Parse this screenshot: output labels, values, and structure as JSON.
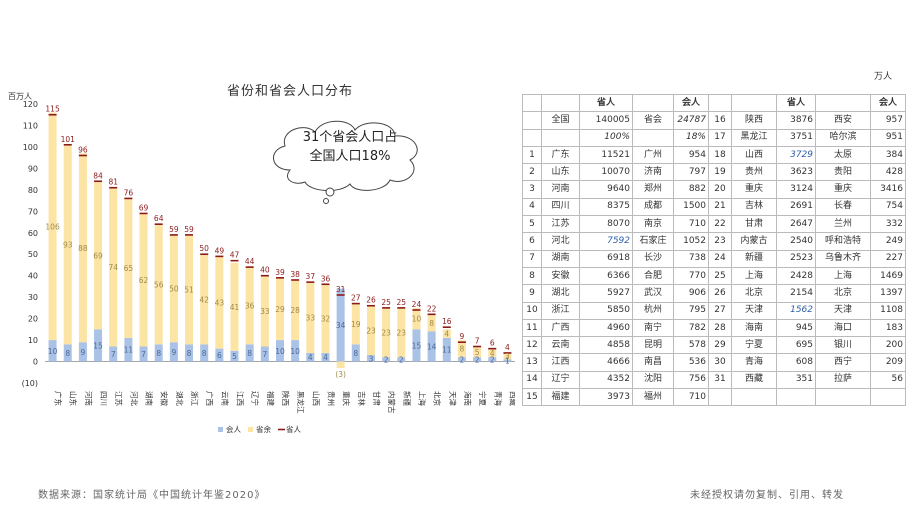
{
  "title": "省份和省会人口分布",
  "y_unit": "百万人",
  "cloud_line1": "31个省会人口占",
  "cloud_line2": "全国人口18%",
  "table_unit": "万人",
  "footer_source": "数据来源：国家统计局《中国统计年鉴2020》",
  "footer_note": "未经授权请勿复制、引用、转发",
  "colors": {
    "capital": "#a9c2e6",
    "rest": "#fce4a4",
    "province": "#8b1a1a"
  },
  "chart_data": {
    "type": "bar",
    "categories": [
      "广东",
      "山东",
      "河南",
      "四川",
      "江苏",
      "河北",
      "湖南",
      "安徽",
      "湖北",
      "浙江",
      "广西",
      "云南",
      "江西",
      "辽宁",
      "福建",
      "陕西",
      "黑龙江",
      "山西",
      "贵州",
      "重庆",
      "吉林",
      "甘肃",
      "内蒙古",
      "新疆",
      "上海",
      "北京",
      "天津",
      "海南",
      "宁夏",
      "青海",
      "西藏"
    ],
    "series": [
      {
        "name": "会人",
        "values": [
          10,
          8,
          9,
          15,
          7,
          11,
          7,
          8,
          9,
          8,
          8,
          6,
          5,
          8,
          7,
          10,
          10,
          4,
          4,
          34,
          8,
          3,
          2,
          2,
          15,
          14,
          11,
          2,
          2,
          2,
          1
        ]
      },
      {
        "name": "省余",
        "values": [
          106,
          93,
          88,
          69,
          74,
          65,
          62,
          56,
          50,
          51,
          42,
          43,
          41,
          36,
          33,
          29,
          28,
          33,
          32,
          -3,
          19,
          23,
          23,
          23,
          10,
          8,
          4,
          8,
          5,
          4,
          3
        ]
      },
      {
        "name": "省人",
        "values": [
          115,
          101,
          96,
          84,
          81,
          76,
          69,
          64,
          59,
          59,
          50,
          49,
          47,
          44,
          40,
          39,
          38,
          37,
          36,
          31,
          27,
          26,
          25,
          25,
          24,
          22,
          16,
          9,
          7,
          6,
          4
        ]
      }
    ],
    "ylim": [
      -10,
      120
    ],
    "yticks": [
      -10,
      0,
      10,
      20,
      30,
      40,
      50,
      60,
      70,
      80,
      90,
      100,
      110,
      120
    ],
    "ytick_labels": [
      "(10)",
      "0",
      "10",
      "20",
      "30",
      "40",
      "50",
      "60",
      "70",
      "80",
      "90",
      "100",
      "110",
      "120"
    ],
    "rest_labels": [
      "106",
      "93",
      "88",
      "69",
      "74",
      "65",
      "62",
      "56",
      "50",
      "51",
      "42",
      "43",
      "41",
      "36",
      "33",
      "29",
      "28",
      "33",
      "32",
      "(3)",
      "19",
      "23",
      "23",
      "23",
      "10",
      "8",
      "4",
      "8",
      "5",
      "4",
      "3"
    ],
    "legend": [
      "会人",
      "省余",
      "省人"
    ],
    "legend_position": "bottom"
  },
  "table": {
    "header": {
      "c1": "省人",
      "c2": "会人",
      "c3": "省人",
      "c4": "会人"
    },
    "summary1": {
      "label": "全国",
      "ppop": "140005",
      "cap": "省会",
      "cpop": "24787",
      "r2": "16",
      "prov2": "陕西",
      "ppop2": "3876",
      "cap2": "西安",
      "cpop2": "957"
    },
    "summary2": {
      "ppop": "100%",
      "cpop": "18%",
      "r2": "17",
      "prov2": "黑龙江",
      "ppop2": "3751",
      "cap2": "哈尔滨",
      "cpop2": "951"
    },
    "rows": [
      {
        "r": "1",
        "prov": "广东",
        "ppop": "11521",
        "cap": "广州",
        "cpop": "954",
        "r2": "18",
        "prov2": "山西",
        "ppop2": "3729",
        "cap2": "太原",
        "cpop2": "384"
      },
      {
        "r": "2",
        "prov": "山东",
        "ppop": "10070",
        "cap": "济南",
        "cpop": "797",
        "r2": "19",
        "prov2": "贵州",
        "ppop2": "3623",
        "cap2": "贵阳",
        "cpop2": "428"
      },
      {
        "r": "3",
        "prov": "河南",
        "ppop": "9640",
        "cap": "郑州",
        "cpop": "882",
        "r2": "20",
        "prov2": "重庆",
        "ppop2": "3124",
        "cap2": "重庆",
        "cpop2": "3416"
      },
      {
        "r": "4",
        "prov": "四川",
        "ppop": "8375",
        "cap": "成都",
        "cpop": "1500",
        "r2": "21",
        "prov2": "吉林",
        "ppop2": "2691",
        "cap2": "长春",
        "cpop2": "754"
      },
      {
        "r": "5",
        "prov": "江苏",
        "ppop": "8070",
        "cap": "南京",
        "cpop": "710",
        "r2": "22",
        "prov2": "甘肃",
        "ppop2": "2647",
        "cap2": "兰州",
        "cpop2": "332"
      },
      {
        "r": "6",
        "prov": "河北",
        "ppop": "7592",
        "cap": "石家庄",
        "cpop": "1052",
        "r2": "23",
        "prov2": "内蒙古",
        "ppop2": "2540",
        "cap2": "呼和浩特",
        "cpop2": "249"
      },
      {
        "r": "7",
        "prov": "湖南",
        "ppop": "6918",
        "cap": "长沙",
        "cpop": "738",
        "r2": "24",
        "prov2": "新疆",
        "ppop2": "2523",
        "cap2": "乌鲁木齐",
        "cpop2": "227"
      },
      {
        "r": "8",
        "prov": "安徽",
        "ppop": "6366",
        "cap": "合肥",
        "cpop": "770",
        "r2": "25",
        "prov2": "上海",
        "ppop2": "2428",
        "cap2": "上海",
        "cpop2": "1469"
      },
      {
        "r": "9",
        "prov": "湖北",
        "ppop": "5927",
        "cap": "武汉",
        "cpop": "906",
        "r2": "26",
        "prov2": "北京",
        "ppop2": "2154",
        "cap2": "北京",
        "cpop2": "1397"
      },
      {
        "r": "10",
        "prov": "浙江",
        "ppop": "5850",
        "cap": "杭州",
        "cpop": "795",
        "r2": "27",
        "prov2": "天津",
        "ppop2": "1562",
        "cap2": "天津",
        "cpop2": "1108"
      },
      {
        "r": "11",
        "prov": "广西",
        "ppop": "4960",
        "cap": "南宁",
        "cpop": "782",
        "r2": "28",
        "prov2": "海南",
        "ppop2": "945",
        "cap2": "海口",
        "cpop2": "183"
      },
      {
        "r": "12",
        "prov": "云南",
        "ppop": "4858",
        "cap": "昆明",
        "cpop": "578",
        "r2": "29",
        "prov2": "宁夏",
        "ppop2": "695",
        "cap2": "银川",
        "cpop2": "200"
      },
      {
        "r": "13",
        "prov": "江西",
        "ppop": "4666",
        "cap": "南昌",
        "cpop": "536",
        "r2": "30",
        "prov2": "青海",
        "ppop2": "608",
        "cap2": "西宁",
        "cpop2": "209"
      },
      {
        "r": "14",
        "prov": "辽宁",
        "ppop": "4352",
        "cap": "沈阳",
        "cpop": "756",
        "r2": "31",
        "prov2": "西藏",
        "ppop2": "351",
        "cap2": "拉萨",
        "cpop2": "56"
      },
      {
        "r": "15",
        "prov": "福建",
        "ppop": "3973",
        "cap": "福州",
        "cpop": "710",
        "r2": "",
        "prov2": "",
        "ppop2": "",
        "cap2": "",
        "cpop2": ""
      }
    ]
  }
}
